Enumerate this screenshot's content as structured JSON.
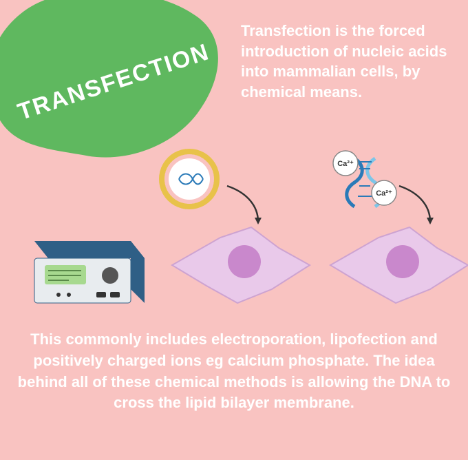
{
  "background_color": "#f9c3c1",
  "blob": {
    "title": "TRANSFECTION",
    "fill": "#5fb85f",
    "title_color": "#ffffff"
  },
  "definition": {
    "text": "Transfection is the forced introduction of nucleic acids into mammalian cells, by chemical means.",
    "color": "#ffffff"
  },
  "liposome": {
    "ring_outer": "#e8c24a",
    "ring_inner": "#ffffff",
    "dna_color": "#2a7ab8"
  },
  "calcium": {
    "label": "Ca²⁺",
    "circle_fill": "#ffffff",
    "circle_stroke": "#888888",
    "dna_color1": "#2a7ab8",
    "dna_color2": "#7cc5e8"
  },
  "arrows": {
    "color": "#333333"
  },
  "cell": {
    "body_fill": "#e9c9ea",
    "body_stroke": "#cda3d1",
    "nucleus_fill": "#c988cc"
  },
  "device": {
    "body_fill": "#2f5f86",
    "face_fill": "#e8ecef",
    "screen_fill": "#a7d98f",
    "knob_fill": "#555555",
    "detail_fill": "#333333"
  },
  "bottom": {
    "text": "This commonly includes electroporation, lipofection and positively charged ions eg calcium phosphate. The idea behind all of these chemical methods is allowing the DNA to cross the lipid bilayer membrane.",
    "color": "#ffffff"
  }
}
